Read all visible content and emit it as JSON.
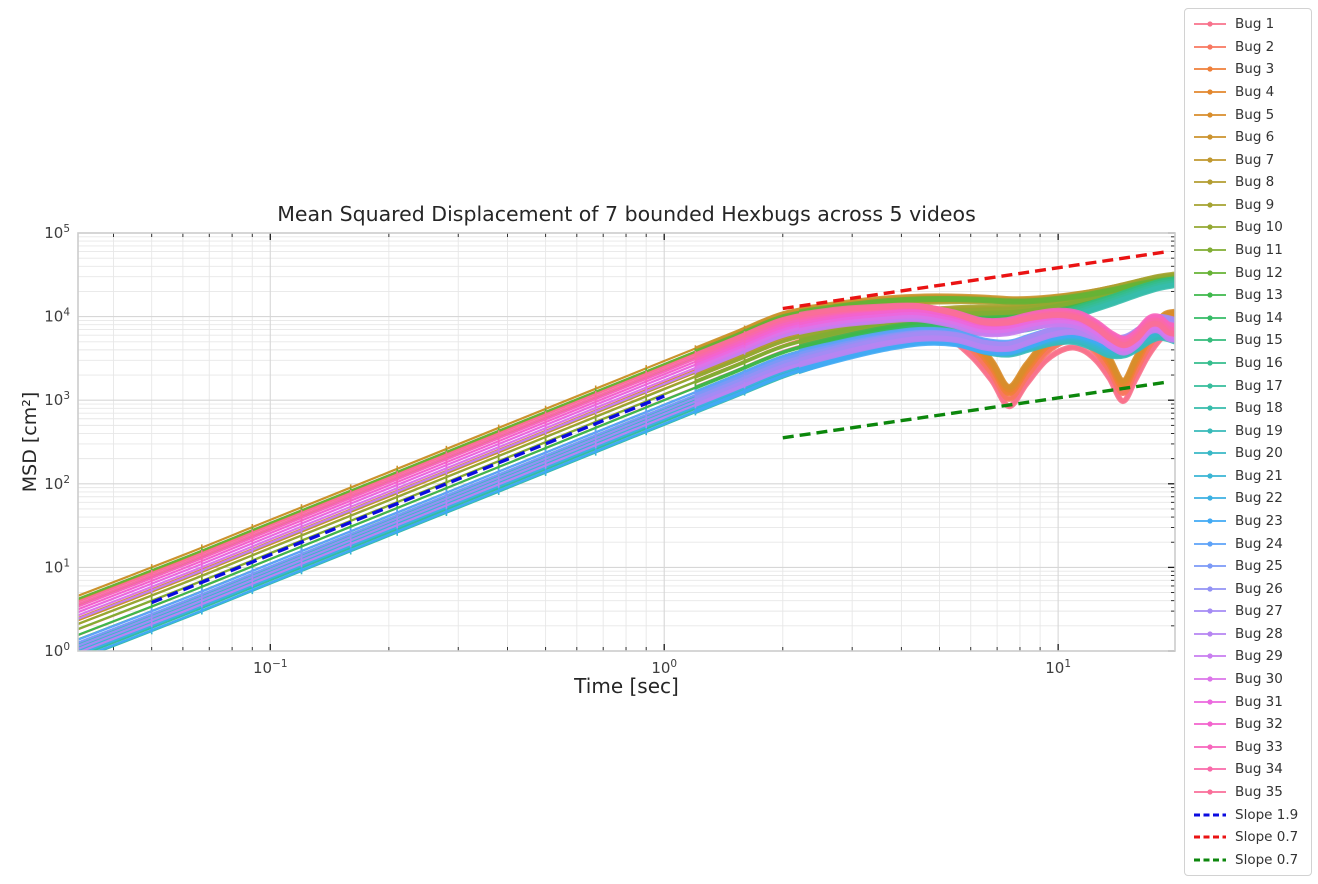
{
  "chart_data": {
    "type": "line",
    "title": "Mean Squared Displacement of 7 bounded Hexbugs across 5 videos",
    "xlabel": "Time [sec]",
    "ylabel": "MSD [cm²]",
    "x_scale": "log",
    "y_scale": "log",
    "xlim": [
      0.0325,
      19.8
    ],
    "ylim": [
      1,
      100000
    ],
    "x_tick_exponents": [
      -1,
      0,
      1
    ],
    "y_tick_exponents": [
      0,
      1,
      2,
      3,
      4,
      5
    ],
    "grid": true,
    "legend_position": "right-outside",
    "marker_times": [
      0.05,
      0.067,
      0.09,
      0.12,
      0.16,
      0.21,
      0.28,
      0.38,
      0.5,
      0.67,
      0.9,
      1.2,
      1.6
    ],
    "profiles": {
      "dip": [
        [
          0.032,
          2.15
        ],
        [
          0.06,
          6.8
        ],
        [
          0.1,
          18
        ],
        [
          0.2,
          67
        ],
        [
          0.4,
          250
        ],
        [
          0.7,
          730
        ],
        [
          1,
          1440
        ],
        [
          1.5,
          3100
        ],
        [
          2,
          5400
        ],
        [
          2.7,
          8200
        ],
        [
          3.5,
          11000
        ],
        [
          4.2,
          12300
        ],
        [
          5,
          10000
        ],
        [
          6,
          5200
        ],
        [
          6.8,
          2600
        ],
        [
          7.5,
          1300
        ],
        [
          8.3,
          2400
        ],
        [
          9.3,
          4600
        ],
        [
          10.5,
          6500
        ],
        [
          11.5,
          6300
        ],
        [
          12.5,
          4700
        ],
        [
          13.5,
          2900
        ],
        [
          14.6,
          1550
        ],
        [
          15.7,
          2800
        ],
        [
          16.7,
          4900
        ],
        [
          17.7,
          7400
        ],
        [
          18.7,
          9800
        ],
        [
          19.8,
          10400
        ]
      ],
      "rise": [
        [
          0.032,
          1.78
        ],
        [
          0.06,
          5.6
        ],
        [
          0.1,
          14.8
        ],
        [
          0.2,
          55
        ],
        [
          0.4,
          206
        ],
        [
          0.7,
          597
        ],
        [
          1,
          1176
        ],
        [
          1.5,
          2530
        ],
        [
          2,
          4390
        ],
        [
          2.7,
          6300
        ],
        [
          3.5,
          8100
        ],
        [
          4.5,
          9600
        ],
        [
          5.5,
          10400
        ],
        [
          6.5,
          10800
        ],
        [
          7.5,
          11000
        ],
        [
          8.5,
          11600
        ],
        [
          10,
          13200
        ],
        [
          12,
          16000
        ],
        [
          14,
          19500
        ],
        [
          16,
          23500
        ],
        [
          18,
          27000
        ],
        [
          19.8,
          29000
        ]
      ],
      "tealhigh": [
        [
          0.032,
          0.93
        ],
        [
          0.06,
          2.95
        ],
        [
          0.1,
          7.8
        ],
        [
          0.2,
          29
        ],
        [
          0.4,
          108
        ],
        [
          0.7,
          315
        ],
        [
          1,
          620
        ],
        [
          1.5,
          1335
        ],
        [
          2,
          2315
        ],
        [
          2.7,
          3700
        ],
        [
          3.5,
          5100
        ],
        [
          4.5,
          6400
        ],
        [
          5.5,
          7300
        ],
        [
          6.5,
          7800
        ],
        [
          7.5,
          8000
        ],
        [
          8.5,
          8600
        ],
        [
          10,
          10500
        ],
        [
          12,
          13800
        ],
        [
          14,
          17500
        ],
        [
          16,
          21800
        ],
        [
          18,
          25800
        ],
        [
          19.8,
          28000
        ]
      ],
      "blue": [
        [
          0.032,
          0.98
        ],
        [
          0.06,
          3.1
        ],
        [
          0.1,
          8.2
        ],
        [
          0.2,
          30.7
        ],
        [
          0.4,
          114
        ],
        [
          0.7,
          332
        ],
        [
          1,
          653
        ],
        [
          1.5,
          1405
        ],
        [
          2,
          2440
        ],
        [
          2.7,
          3500
        ],
        [
          3.6,
          4600
        ],
        [
          4.5,
          5200
        ],
        [
          5.5,
          4900
        ],
        [
          6.5,
          3900
        ],
        [
          7.5,
          3700
        ],
        [
          8.5,
          4400
        ],
        [
          9.7,
          5300
        ],
        [
          11,
          5600
        ],
        [
          12.3,
          4800
        ],
        [
          13.5,
          4000
        ],
        [
          14.8,
          4100
        ],
        [
          16,
          5000
        ],
        [
          17.2,
          6300
        ],
        [
          18.3,
          6900
        ],
        [
          19.8,
          6300
        ]
      ],
      "pink": [
        [
          0.032,
          2.95
        ],
        [
          0.06,
          9.3
        ],
        [
          0.1,
          24.7
        ],
        [
          0.2,
          92
        ],
        [
          0.4,
          343
        ],
        [
          0.7,
          1000
        ],
        [
          1,
          1960
        ],
        [
          1.5,
          4230
        ],
        [
          2,
          7320
        ],
        [
          2.7,
          9700
        ],
        [
          3.6,
          11000
        ],
        [
          4.4,
          11400
        ],
        [
          5.4,
          9600
        ],
        [
          6.4,
          7600
        ],
        [
          7.4,
          7600
        ],
        [
          8.6,
          8900
        ],
        [
          10,
          9700
        ],
        [
          11.3,
          9000
        ],
        [
          12.5,
          7000
        ],
        [
          13.6,
          5200
        ],
        [
          14.7,
          4400
        ],
        [
          15.8,
          5300
        ],
        [
          17,
          7700
        ],
        [
          18,
          8000
        ],
        [
          19,
          6500
        ],
        [
          19.8,
          6200
        ]
      ]
    },
    "series": [
      {
        "name": "Bug 1",
        "color": "#f8728c",
        "profile": "dip",
        "m_start": 0.7,
        "m_end": 0.62
      },
      {
        "name": "Bug 2",
        "color": "#f8775f",
        "profile": "dip",
        "m_start": 0.82,
        "m_end": 0.78
      },
      {
        "name": "Bug 3",
        "color": "#ef7f39",
        "profile": "dip",
        "m_start": 0.95,
        "m_end": 0.92
      },
      {
        "name": "Bug 4",
        "color": "#e3872d",
        "profile": "dip",
        "m_start": 1.05,
        "m_end": 1.02
      },
      {
        "name": "Bug 5",
        "color": "#d88d2b",
        "profile": "dip",
        "m_start": 1.12,
        "m_end": 1.1
      },
      {
        "name": "Bug 6",
        "color": "#cc932d",
        "profile": "rise",
        "m_start": 2.5,
        "m_end": 1.0
      },
      {
        "name": "Bug 7",
        "color": "#c0982f",
        "profile": "rise",
        "m_start": 2.2,
        "m_end": 1.03
      },
      {
        "name": "Bug 8",
        "color": "#b39d31",
        "profile": "rise",
        "m_start": 1.9,
        "m_end": 1.06
      },
      {
        "name": "Bug 9",
        "color": "#a5a331",
        "profile": "rise",
        "m_start": 1.3,
        "m_end": 1.1
      },
      {
        "name": "Bug 10",
        "color": "#94a832",
        "profile": "rise",
        "m_start": 1.15,
        "m_end": 1.05
      },
      {
        "name": "Bug 11",
        "color": "#81ad33",
        "profile": "rise",
        "m_start": 1.0,
        "m_end": 1.0
      },
      {
        "name": "Bug 12",
        "color": "#66b235",
        "profile": "rise",
        "m_start": 2.3,
        "m_end": 0.95
      },
      {
        "name": "Bug 13",
        "color": "#3eb84b",
        "profile": "rise",
        "m_start": 0.85,
        "m_end": 0.9
      },
      {
        "name": "Bug 14",
        "color": "#35bb66",
        "profile": "rise",
        "m_start": 0.75,
        "m_end": 0.85
      },
      {
        "name": "Bug 15",
        "color": "#34bc7b",
        "profile": "tealhigh",
        "m_start": 1.1,
        "m_end": 1.0
      },
      {
        "name": "Bug 16",
        "color": "#35bd8d",
        "profile": "tealhigh",
        "m_start": 1.0,
        "m_end": 0.95
      },
      {
        "name": "Bug 17",
        "color": "#36bd9c",
        "profile": "tealhigh",
        "m_start": 0.9,
        "m_end": 0.9
      },
      {
        "name": "Bug 18",
        "color": "#36bcab",
        "profile": "tealhigh",
        "m_start": 0.82,
        "m_end": 0.85
      },
      {
        "name": "Bug 19",
        "color": "#37bab9",
        "profile": "blue",
        "m_start": 1.2,
        "m_end": 0.8
      },
      {
        "name": "Bug 20",
        "color": "#38b8c6",
        "profile": "blue",
        "m_start": 1.1,
        "m_end": 0.9
      },
      {
        "name": "Bug 21",
        "color": "#39b5d4",
        "profile": "blue",
        "m_start": 1.0,
        "m_end": 1.0
      },
      {
        "name": "Bug 22",
        "color": "#3bb1e3",
        "profile": "blue",
        "m_start": 0.9,
        "m_end": 1.1
      },
      {
        "name": "Bug 23",
        "color": "#41aaf4",
        "profile": "blue",
        "m_start": 0.8,
        "m_end": 1.2
      },
      {
        "name": "Bug 24",
        "color": "#5da2f8",
        "profile": "blue",
        "m_start": 1.35,
        "m_end": 1.3
      },
      {
        "name": "Bug 25",
        "color": "#7b99f7",
        "profile": "blue",
        "m_start": 1.25,
        "m_end": 1.2
      },
      {
        "name": "Bug 26",
        "color": "#9292f5",
        "profile": "blue",
        "m_start": 1.15,
        "m_end": 1.35
      },
      {
        "name": "Bug 27",
        "color": "#a48bf4",
        "profile": "blue",
        "m_start": 1.05,
        "m_end": 1.45
      },
      {
        "name": "Bug 28",
        "color": "#b685f2",
        "profile": "blue",
        "m_start": 0.95,
        "m_end": 1.25
      },
      {
        "name": "Bug 29",
        "color": "#c87df0",
        "profile": "pink",
        "m_start": 0.8,
        "m_end": 0.85
      },
      {
        "name": "Bug 30",
        "color": "#dc74ea",
        "profile": "pink",
        "m_start": 0.88,
        "m_end": 0.95
      },
      {
        "name": "Bug 31",
        "color": "#eb68de",
        "profile": "pink",
        "m_start": 0.96,
        "m_end": 1.05
      },
      {
        "name": "Bug 32",
        "color": "#f363cd",
        "profile": "pink",
        "m_start": 1.04,
        "m_end": 1.15
      },
      {
        "name": "Bug 33",
        "color": "#f765bc",
        "profile": "pink",
        "m_start": 1.12,
        "m_end": 1.25
      },
      {
        "name": "Bug 34",
        "color": "#f969a9",
        "profile": "pink",
        "m_start": 1.2,
        "m_end": 1.1
      },
      {
        "name": "Bug 35",
        "color": "#fa6e99",
        "profile": "pink",
        "m_start": 1.28,
        "m_end": 1.0
      }
    ],
    "slope_guides": [
      {
        "name": "Slope 1.9",
        "color": "#0b0be0",
        "from": [
          0.05,
          3.8
        ],
        "to": [
          1.0,
          1120
        ]
      },
      {
        "name": "Slope 0.7",
        "color": "#ea1313",
        "from": [
          2.0,
          12500
        ],
        "to": [
          19.0,
          60000
        ]
      },
      {
        "name": "Slope 0.7",
        "color": "#0c870c",
        "from": [
          2.0,
          355
        ],
        "to": [
          19.0,
          1650
        ]
      }
    ]
  }
}
